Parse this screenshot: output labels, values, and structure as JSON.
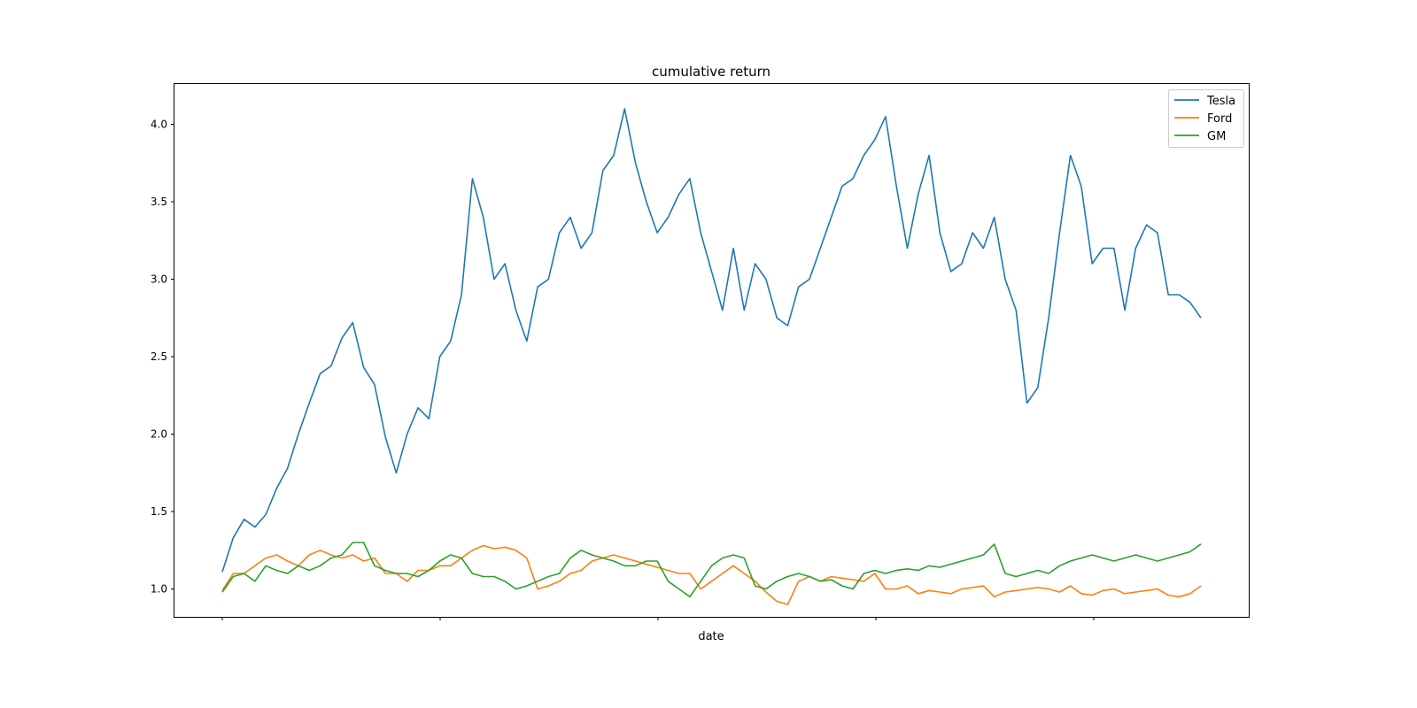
{
  "chart_data": {
    "type": "line",
    "title": "cumulative return",
    "xlabel": "date",
    "ylabel": "",
    "ylim": [
      0.82,
      4.26
    ],
    "y_ticks": [
      1.0,
      1.5,
      2.0,
      2.5,
      3.0,
      3.5,
      4.0
    ],
    "y_tick_labels": [
      "1.0",
      "1.5",
      "2.0",
      "2.5",
      "3.0",
      "3.5",
      "4.0"
    ],
    "x_tick_count": 5,
    "grid": false,
    "legend_placement": "top-right",
    "x_index": [
      0,
      10,
      20,
      30,
      40,
      50,
      60,
      70,
      80,
      90,
      100,
      110,
      120,
      130,
      140,
      150,
      160,
      170,
      180,
      190,
      200,
      210,
      220,
      230,
      240,
      250,
      260,
      270,
      280,
      290,
      300,
      310,
      320,
      330,
      340,
      350,
      360,
      370,
      380,
      390,
      400,
      410,
      420,
      430,
      440,
      450,
      460,
      470,
      480,
      490,
      500,
      510,
      520,
      530,
      540,
      550,
      560,
      570,
      580,
      590,
      600,
      610,
      620,
      630,
      640,
      650,
      660,
      670,
      680,
      690,
      700,
      710,
      720,
      730,
      740,
      750,
      760,
      770,
      780,
      790,
      800,
      810,
      820,
      830,
      840,
      850,
      860,
      870,
      880,
      890,
      900
    ],
    "series": [
      {
        "name": "Tesla",
        "color": "#1f77b4",
        "values": [
          1.11,
          1.33,
          1.45,
          1.4,
          1.48,
          1.65,
          1.78,
          2.0,
          2.2,
          2.39,
          2.44,
          2.62,
          2.72,
          2.43,
          2.32,
          1.98,
          1.75,
          2.0,
          2.17,
          2.1,
          2.5,
          2.6,
          2.9,
          3.65,
          3.4,
          3.0,
          3.1,
          2.8,
          2.6,
          2.95,
          3.0,
          3.3,
          3.4,
          3.2,
          3.3,
          3.7,
          3.8,
          4.1,
          3.75,
          3.5,
          3.3,
          3.4,
          3.55,
          3.65,
          3.3,
          3.05,
          2.8,
          3.2,
          2.8,
          3.1,
          3.0,
          2.75,
          2.7,
          2.95,
          3.0,
          3.2,
          3.4,
          3.6,
          3.65,
          3.8,
          3.9,
          4.05,
          3.6,
          3.2,
          3.55,
          3.8,
          3.3,
          3.05,
          3.1,
          3.3,
          3.2,
          3.4,
          3.0,
          2.8,
          2.2,
          2.3,
          2.75,
          3.3,
          3.8,
          3.6,
          3.1,
          3.2,
          3.2,
          2.8,
          3.2,
          3.35,
          3.3,
          2.9,
          2.9,
          2.85,
          2.75
        ]
      },
      {
        "name": "Ford",
        "color": "#ff7f0e",
        "values": [
          0.99,
          1.1,
          1.1,
          1.15,
          1.2,
          1.22,
          1.18,
          1.15,
          1.22,
          1.25,
          1.22,
          1.2,
          1.22,
          1.18,
          1.2,
          1.1,
          1.1,
          1.05,
          1.12,
          1.12,
          1.15,
          1.15,
          1.2,
          1.25,
          1.28,
          1.26,
          1.27,
          1.25,
          1.2,
          1.0,
          1.02,
          1.05,
          1.1,
          1.12,
          1.18,
          1.2,
          1.22,
          1.2,
          1.18,
          1.16,
          1.14,
          1.12,
          1.1,
          1.1,
          1.0,
          1.05,
          1.1,
          1.15,
          1.1,
          1.05,
          0.98,
          0.92,
          0.9,
          1.05,
          1.08,
          1.05,
          1.08,
          1.07,
          1.06,
          1.05,
          1.1,
          1.0,
          1.0,
          1.02,
          0.97,
          0.99,
          0.98,
          0.97,
          1.0,
          1.01,
          1.02,
          0.95,
          0.98,
          0.99,
          1.0,
          1.01,
          1.0,
          0.98,
          1.02,
          0.97,
          0.96,
          0.99,
          1.0,
          0.97,
          0.98,
          0.99,
          1.0,
          0.96,
          0.95,
          0.97,
          1.02
        ]
      },
      {
        "name": "GM",
        "color": "#2ca02c",
        "values": [
          0.98,
          1.08,
          1.1,
          1.05,
          1.15,
          1.12,
          1.1,
          1.15,
          1.12,
          1.15,
          1.2,
          1.22,
          1.3,
          1.3,
          1.15,
          1.12,
          1.1,
          1.1,
          1.08,
          1.12,
          1.18,
          1.22,
          1.2,
          1.1,
          1.08,
          1.08,
          1.05,
          1.0,
          1.02,
          1.05,
          1.08,
          1.1,
          1.2,
          1.25,
          1.22,
          1.2,
          1.18,
          1.15,
          1.15,
          1.18,
          1.18,
          1.05,
          1.0,
          0.95,
          1.05,
          1.15,
          1.2,
          1.22,
          1.2,
          1.02,
          1.0,
          1.05,
          1.08,
          1.1,
          1.08,
          1.05,
          1.06,
          1.02,
          1.0,
          1.1,
          1.12,
          1.1,
          1.12,
          1.13,
          1.12,
          1.15,
          1.14,
          1.16,
          1.18,
          1.2,
          1.22,
          1.29,
          1.1,
          1.08,
          1.1,
          1.12,
          1.1,
          1.15,
          1.18,
          1.2,
          1.22,
          1.2,
          1.18,
          1.2,
          1.22,
          1.2,
          1.18,
          1.2,
          1.22,
          1.24,
          1.29
        ]
      }
    ]
  }
}
